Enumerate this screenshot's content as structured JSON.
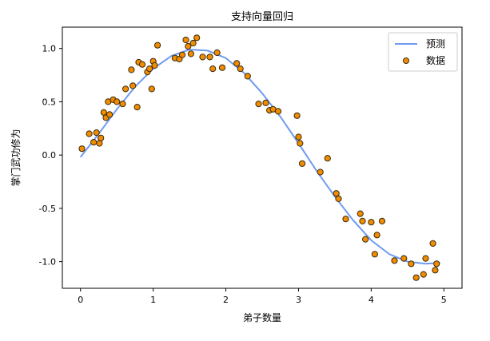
{
  "chart_data": {
    "type": "scatter",
    "title": "支持向量回归",
    "xlabel": "弟子数量",
    "ylabel": "掌门武功修为",
    "xlim": [
      -0.25,
      5.25
    ],
    "ylim": [
      -1.25,
      1.2
    ],
    "xticks": [
      0,
      1,
      2,
      3,
      4,
      5
    ],
    "xtick_labels": [
      "0",
      "1",
      "2",
      "3",
      "4",
      "5"
    ],
    "yticks": [
      -1.0,
      -0.5,
      0.0,
      0.5,
      1.0
    ],
    "ytick_labels": [
      "-1.0",
      "-0.5",
      "0.0",
      "0.5",
      "1.0"
    ],
    "grid": false,
    "legend_position": "top-right",
    "series": [
      {
        "name": "预测",
        "kind": "line",
        "color": "#6f9bef",
        "x": [
          0.0,
          0.25,
          0.5,
          0.75,
          1.0,
          1.25,
          1.5,
          1.75,
          2.0,
          2.25,
          2.5,
          2.75,
          3.0,
          3.25,
          3.5,
          3.75,
          4.0,
          4.25,
          4.5,
          4.75,
          4.95
        ],
        "y": [
          -0.02,
          0.2,
          0.43,
          0.64,
          0.81,
          0.93,
          0.99,
          0.98,
          0.91,
          0.77,
          0.58,
          0.36,
          0.11,
          -0.15,
          -0.39,
          -0.61,
          -0.8,
          -0.93,
          -1.0,
          -1.02,
          -1.01
        ]
      },
      {
        "name": "数据",
        "kind": "scatter",
        "color": "#f08c00",
        "edge_color": "#3a2a10",
        "x": [
          0.02,
          0.12,
          0.18,
          0.22,
          0.26,
          0.28,
          0.32,
          0.35,
          0.38,
          0.4,
          0.45,
          0.5,
          0.58,
          0.62,
          0.7,
          0.72,
          0.78,
          0.8,
          0.85,
          0.92,
          0.95,
          0.98,
          1.0,
          1.02,
          1.06,
          1.3,
          1.36,
          1.4,
          1.45,
          1.48,
          1.52,
          1.55,
          1.6,
          1.68,
          1.78,
          1.82,
          1.88,
          1.95,
          2.15,
          2.2,
          2.3,
          2.45,
          2.55,
          2.6,
          2.65,
          2.72,
          2.98,
          3.0,
          3.02,
          3.05,
          3.3,
          3.4,
          3.52,
          3.55,
          3.65,
          3.85,
          3.88,
          3.92,
          4.0,
          4.05,
          4.08,
          4.15,
          4.32,
          4.45,
          4.55,
          4.62,
          4.72,
          4.75,
          4.85,
          4.88,
          4.9
        ],
        "y": [
          0.06,
          0.2,
          0.12,
          0.21,
          0.11,
          0.16,
          0.4,
          0.35,
          0.5,
          0.38,
          0.52,
          0.5,
          0.48,
          0.62,
          0.8,
          0.65,
          0.45,
          0.87,
          0.85,
          0.78,
          0.81,
          0.62,
          0.88,
          0.84,
          1.03,
          0.91,
          0.9,
          0.94,
          1.08,
          1.02,
          0.95,
          1.05,
          1.1,
          0.92,
          0.92,
          0.81,
          0.96,
          0.82,
          0.86,
          0.81,
          0.74,
          0.48,
          0.49,
          0.42,
          0.43,
          0.41,
          0.37,
          0.17,
          0.11,
          -0.08,
          -0.16,
          -0.03,
          -0.36,
          -0.41,
          -0.6,
          -0.55,
          -0.62,
          -0.79,
          -0.63,
          -0.93,
          -0.75,
          -0.62,
          -0.99,
          -0.97,
          -1.02,
          -1.15,
          -1.12,
          -0.97,
          -0.83,
          -1.08,
          -1.02
        ]
      }
    ]
  }
}
